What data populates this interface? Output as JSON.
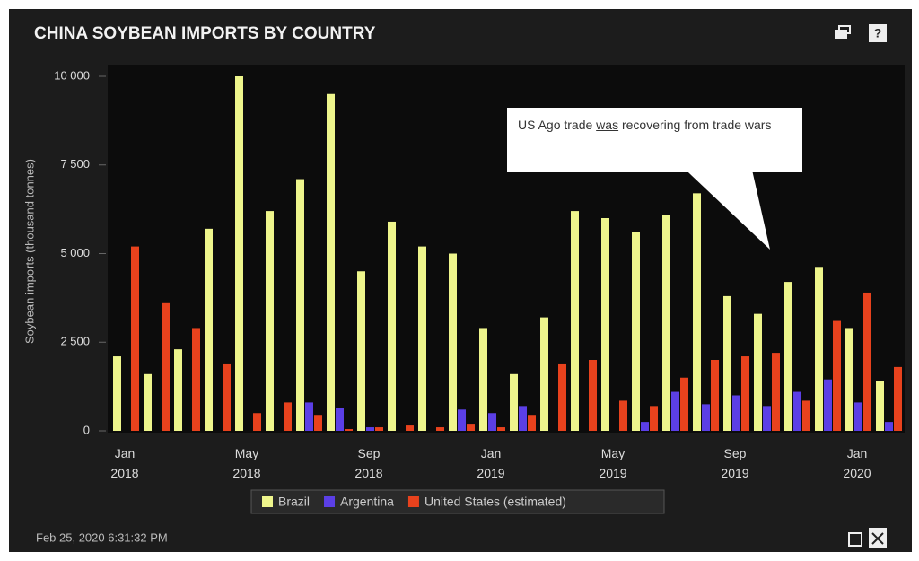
{
  "chart_data": {
    "type": "bar",
    "title": "CHINA SOYBEAN IMPORTS BY COUNTRY",
    "ylabel": "Soybean imports (thousand tonnes)",
    "categories": [
      "Jan 2018",
      null,
      null,
      null,
      "May 2018",
      null,
      null,
      null,
      "Sep 2018",
      null,
      null,
      null,
      "Jan 2019",
      null,
      null,
      null,
      "May 2019",
      null,
      null,
      null,
      "Sep 2019",
      null,
      null,
      null,
      "Jan 2020",
      null
    ],
    "series": [
      {
        "name": "Brazil",
        "color": "#eef58c",
        "values": [
          2100,
          1600,
          2300,
          5700,
          10000,
          6200,
          7100,
          9500,
          4500,
          5900,
          5200,
          5000,
          2900,
          1600,
          3200,
          6200,
          6000,
          5600,
          6100,
          6700,
          3800,
          3300,
          4200,
          4600,
          2900,
          1400
        ]
      },
      {
        "name": "Argentina",
        "color": "#5b3fe6",
        "values": [
          0,
          0,
          0,
          0,
          0,
          0,
          800,
          650,
          100,
          0,
          0,
          600,
          500,
          700,
          0,
          0,
          0,
          250,
          1100,
          750,
          1000,
          700,
          1100,
          1450,
          800,
          250
        ]
      },
      {
        "name": "United States (estimated)",
        "color": "#e8421d",
        "values": [
          5200,
          3600,
          2900,
          1900,
          500,
          800,
          450,
          50,
          100,
          150,
          100,
          200,
          100,
          450,
          1900,
          2000,
          850,
          700,
          1500,
          2000,
          2100,
          2200,
          850,
          3100,
          3900,
          1800
        ]
      }
    ],
    "ylim": [
      0,
      10000
    ],
    "yticks": [
      0,
      {
        "value": 2500,
        "label": "2 500"
      },
      {
        "value": 5000,
        "label": "5 000"
      },
      {
        "value": 7500,
        "label": "7 500"
      },
      {
        "value": 10000,
        "label": "10 000"
      }
    ],
    "annotation": {
      "before": "US Ago trade ",
      "underlined": "was",
      "after": " recovering from trade wars"
    },
    "legend": "bottom",
    "timestamp": "Feb 25, 2020 6:31:32 PM"
  }
}
